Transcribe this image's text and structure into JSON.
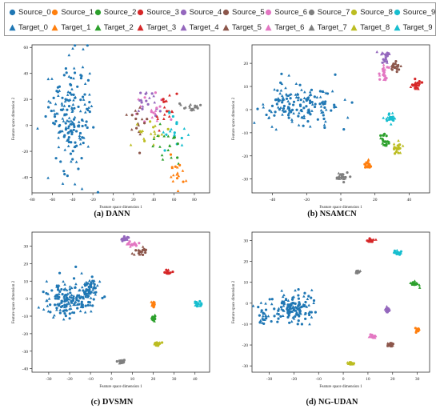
{
  "legend": {
    "items": [
      {
        "label": "Source_0",
        "marker": "circle",
        "color": "#1f77b4"
      },
      {
        "label": "Source_1",
        "marker": "circle",
        "color": "#ff7f0e"
      },
      {
        "label": "Source_2",
        "marker": "circle",
        "color": "#2ca02c"
      },
      {
        "label": "Source_3",
        "marker": "circle",
        "color": "#d62728"
      },
      {
        "label": "Source_4",
        "marker": "circle",
        "color": "#9467bd"
      },
      {
        "label": "Source_5",
        "marker": "circle",
        "color": "#8c564b"
      },
      {
        "label": "Source_6",
        "marker": "circle",
        "color": "#e377c2"
      },
      {
        "label": "Source_7",
        "marker": "circle",
        "color": "#7f7f7f"
      },
      {
        "label": "Source_8",
        "marker": "circle",
        "color": "#bcbd22"
      },
      {
        "label": "Source_9",
        "marker": "circle",
        "color": "#17becf"
      },
      {
        "label": "Target_0",
        "marker": "triangle",
        "color": "#1f77b4"
      },
      {
        "label": "Target_1",
        "marker": "triangle",
        "color": "#ff7f0e"
      },
      {
        "label": "Target_2",
        "marker": "triangle",
        "color": "#2ca02c"
      },
      {
        "label": "Target_3",
        "marker": "triangle",
        "color": "#d62728"
      },
      {
        "label": "Target_4",
        "marker": "triangle",
        "color": "#9467bd"
      },
      {
        "label": "Target_5",
        "marker": "triangle",
        "color": "#8c564b"
      },
      {
        "label": "Target_6",
        "marker": "triangle",
        "color": "#e377c2"
      },
      {
        "label": "Target_7",
        "marker": "triangle",
        "color": "#7f7f7f"
      },
      {
        "label": "Target_8",
        "marker": "triangle",
        "color": "#bcbd22"
      },
      {
        "label": "Target_9",
        "marker": "triangle",
        "color": "#17becf"
      }
    ]
  },
  "chart_data": [
    {
      "type": "scatter",
      "caption": "(a) DANN",
      "xlabel": "Feature space dimension 1",
      "ylabel": "Feature space dimension 2",
      "xlim": [
        -80,
        95
      ],
      "ylim": [
        -52,
        62
      ],
      "xticks": [
        -80,
        -60,
        -40,
        -20,
        0,
        20,
        40,
        60,
        80
      ],
      "yticks": [
        -40,
        -20,
        0,
        20,
        40,
        60
      ],
      "clusters": [
        {
          "class": 0,
          "cx": -42,
          "cy": 5,
          "sx": 11,
          "sy": 24,
          "n": 180
        },
        {
          "class": 4,
          "cx": 32,
          "cy": 18,
          "sx": 6,
          "sy": 5,
          "n": 18
        },
        {
          "class": 6,
          "cx": 40,
          "cy": 14,
          "sx": 8,
          "sy": 6,
          "n": 18
        },
        {
          "class": 3,
          "cx": 50,
          "cy": 10,
          "sx": 7,
          "sy": 7,
          "n": 18
        },
        {
          "class": 5,
          "cx": 26,
          "cy": 2,
          "sx": 5,
          "sy": 8,
          "n": 16
        },
        {
          "class": 7,
          "cx": 78,
          "cy": 14,
          "sx": 6,
          "sy": 3,
          "n": 18
        },
        {
          "class": 9,
          "cx": 64,
          "cy": 0,
          "sx": 8,
          "sy": 8,
          "n": 18
        },
        {
          "class": 8,
          "cx": 36,
          "cy": -8,
          "sx": 8,
          "sy": 6,
          "n": 18
        },
        {
          "class": 2,
          "cx": 54,
          "cy": -14,
          "sx": 8,
          "sy": 8,
          "n": 18
        },
        {
          "class": 1,
          "cx": 63,
          "cy": -38,
          "sx": 5,
          "sy": 5,
          "n": 18
        }
      ]
    },
    {
      "type": "scatter",
      "caption": "(b) NSAMCN",
      "xlabel": "Feature space dimension 1",
      "ylabel": "Feature space dimension 2",
      "xlim": [
        -52,
        52
      ],
      "ylim": [
        -36,
        28
      ],
      "xticks": [
        -40,
        -20,
        0,
        20,
        40
      ],
      "yticks": [
        -30,
        -20,
        -10,
        0,
        10,
        20
      ],
      "clusters": [
        {
          "class": 0,
          "cx": -25,
          "cy": 2,
          "sx": 11,
          "sy": 5,
          "n": 160
        },
        {
          "class": 4,
          "cx": 26,
          "cy": 22,
          "sx": 1.5,
          "sy": 1.5,
          "n": 22
        },
        {
          "class": 5,
          "cx": 32,
          "cy": 19,
          "sx": 1.5,
          "sy": 1.5,
          "n": 22
        },
        {
          "class": 6,
          "cx": 25,
          "cy": 16,
          "sx": 1.2,
          "sy": 1.8,
          "n": 22
        },
        {
          "class": 3,
          "cx": 45,
          "cy": 11,
          "sx": 1.5,
          "sy": 1.3,
          "n": 22
        },
        {
          "class": 9,
          "cx": 29,
          "cy": -4,
          "sx": 1.8,
          "sy": 1.2,
          "n": 22
        },
        {
          "class": 2,
          "cx": 26,
          "cy": -13,
          "sx": 1.3,
          "sy": 1.8,
          "n": 22
        },
        {
          "class": 8,
          "cx": 33,
          "cy": -17,
          "sx": 1.3,
          "sy": 1.3,
          "n": 22
        },
        {
          "class": 1,
          "cx": 16,
          "cy": -24,
          "sx": 0.9,
          "sy": 1.2,
          "n": 22
        },
        {
          "class": 7,
          "cx": 1,
          "cy": -29,
          "sx": 1.8,
          "sy": 1.2,
          "n": 22
        }
      ]
    },
    {
      "type": "scatter",
      "caption": "(c) DVSMN",
      "xlabel": "Feature space dimension 1",
      "ylabel": "Feature space dimension 2",
      "xlim": [
        -38,
        47
      ],
      "ylim": [
        -42,
        38
      ],
      "xticks": [
        -30,
        -20,
        -10,
        0,
        10,
        20,
        30,
        40
      ],
      "yticks": [
        -40,
        -30,
        -20,
        -10,
        0,
        10,
        20,
        30
      ],
      "clusters": [
        {
          "class": 0,
          "cx": -20,
          "cy": 0,
          "sx": 6,
          "sy": 5,
          "n": 170
        },
        {
          "class": 0,
          "cx": -10,
          "cy": 7,
          "sx": 2,
          "sy": 2,
          "n": 35
        },
        {
          "class": 4,
          "cx": 6,
          "cy": 34,
          "sx": 0.8,
          "sy": 0.6,
          "n": 20
        },
        {
          "class": 6,
          "cx": 10,
          "cy": 31,
          "sx": 1.5,
          "sy": 0.8,
          "n": 20
        },
        {
          "class": 5,
          "cx": 14,
          "cy": 27,
          "sx": 1.3,
          "sy": 1.4,
          "n": 20
        },
        {
          "class": 3,
          "cx": 27,
          "cy": 15,
          "sx": 0.9,
          "sy": 0.5,
          "n": 20
        },
        {
          "class": 1,
          "cx": 20,
          "cy": -3,
          "sx": 0.5,
          "sy": 0.8,
          "n": 20
        },
        {
          "class": 9,
          "cx": 41,
          "cy": -3,
          "sx": 1,
          "sy": 0.7,
          "n": 20
        },
        {
          "class": 2,
          "cx": 20,
          "cy": -11,
          "sx": 0.5,
          "sy": 0.8,
          "n": 20
        },
        {
          "class": 8,
          "cx": 22,
          "cy": -26,
          "sx": 0.8,
          "sy": 0.6,
          "n": 20
        },
        {
          "class": 7,
          "cx": 5,
          "cy": -36,
          "sx": 0.8,
          "sy": 0.6,
          "n": 20
        }
      ]
    },
    {
      "type": "scatter",
      "caption": "(d) NG-UDAN",
      "xlabel": "Feature space dimension 1",
      "ylabel": "Feature space dimension 2",
      "xlim": [
        -37,
        35
      ],
      "ylim": [
        -33,
        34
      ],
      "xticks": [
        -30,
        -20,
        -10,
        0,
        10,
        20,
        30
      ],
      "yticks": [
        -30,
        -20,
        -10,
        0,
        10,
        20,
        30
      ],
      "clusters": [
        {
          "class": 0,
          "cx": -20,
          "cy": -2,
          "sx": 4.5,
          "sy": 3.5,
          "n": 140
        },
        {
          "class": 0,
          "cx": -32,
          "cy": -7,
          "sx": 1,
          "sy": 2,
          "n": 20
        },
        {
          "class": 3,
          "cx": 11,
          "cy": 30,
          "sx": 0.7,
          "sy": 0.4,
          "n": 20
        },
        {
          "class": 9,
          "cx": 22,
          "cy": 24,
          "sx": 0.7,
          "sy": 0.5,
          "n": 20
        },
        {
          "class": 7,
          "cx": 6,
          "cy": 15,
          "sx": 0.5,
          "sy": 0.4,
          "n": 20
        },
        {
          "class": 2,
          "cx": 29,
          "cy": 9,
          "sx": 0.8,
          "sy": 0.6,
          "n": 20
        },
        {
          "class": 4,
          "cx": 18,
          "cy": -3,
          "sx": 0.4,
          "sy": 0.6,
          "n": 20
        },
        {
          "class": 1,
          "cx": 30,
          "cy": -13,
          "sx": 0.4,
          "sy": 0.4,
          "n": 20
        },
        {
          "class": 6,
          "cx": 12,
          "cy": -16,
          "sx": 0.8,
          "sy": 0.5,
          "n": 20
        },
        {
          "class": 5,
          "cx": 19,
          "cy": -20,
          "sx": 0.5,
          "sy": 0.5,
          "n": 20
        },
        {
          "class": 8,
          "cx": 3,
          "cy": -29,
          "sx": 0.6,
          "sy": 0.4,
          "n": 20
        }
      ]
    }
  ]
}
